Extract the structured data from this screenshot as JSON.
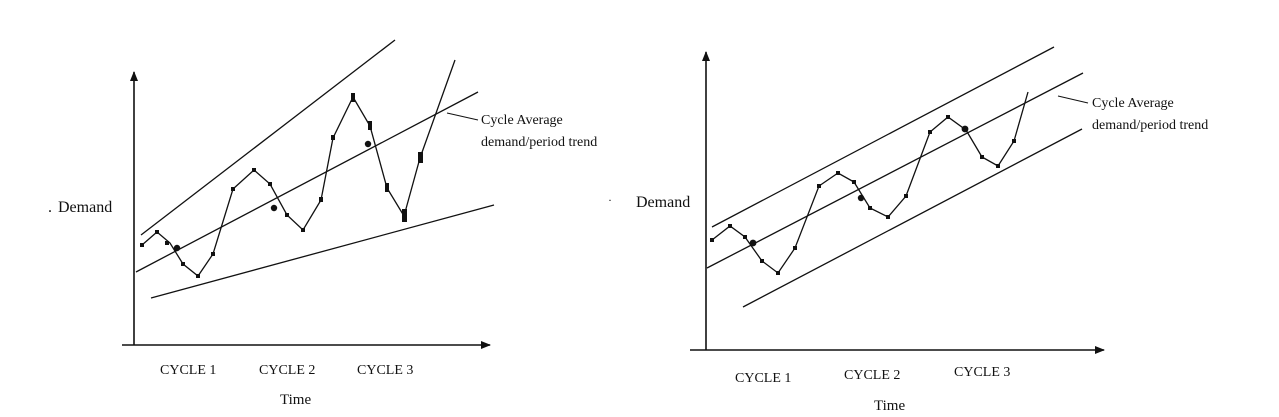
{
  "panels": [
    {
      "id": "left",
      "ylabel": "Demand",
      "ylabel_prefix": ".",
      "xlabel": "Time",
      "cycles": [
        "CYCLE 1",
        "CYCLE 2",
        "CYCLE 3"
      ],
      "annotation": [
        "Cycle Average",
        "demand/period trend"
      ],
      "band": "widening"
    },
    {
      "id": "right",
      "ylabel": "Demand",
      "ylabel_prefix": "·",
      "xlabel": "Time",
      "cycles": [
        "CYCLE 1",
        "CYCLE 2",
        "CYCLE 3"
      ],
      "annotation": [
        "Cycle Average",
        "demand/period trend"
      ],
      "band": "parallel"
    }
  ],
  "colors": {
    "ink": "#111111",
    "background": "#ffffff"
  }
}
